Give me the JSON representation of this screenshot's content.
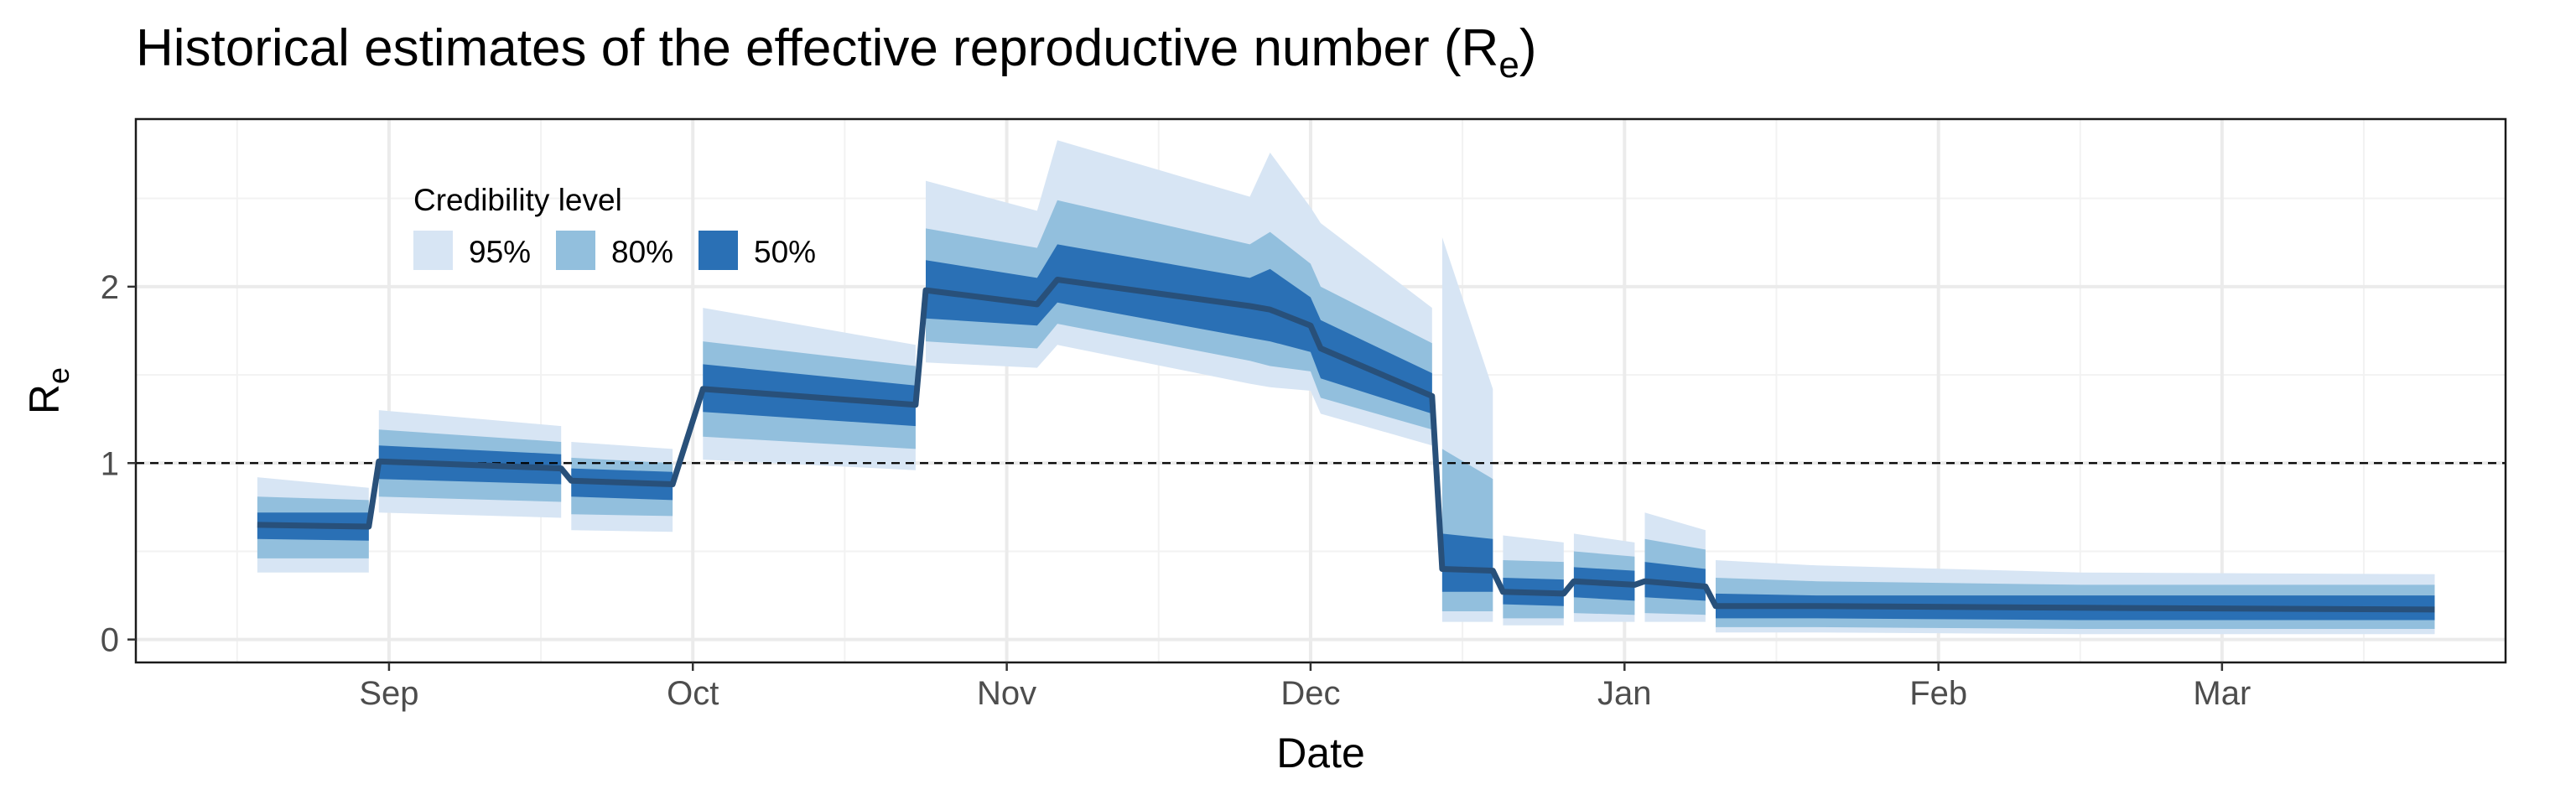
{
  "chart_data": {
    "type": "area",
    "title": "Historical estimates of the effective reproductive number (R",
    "title_sub": "e",
    "title_close": ")",
    "xlabel": "Date",
    "ylabel": "R",
    "ylabel_sub": "e",
    "xlim": [
      "2020-08-07",
      "2021-03-29"
    ],
    "ylim": [
      -0.13,
      2.95
    ],
    "x_ticks": [
      {
        "date": "2020-09-01",
        "label": "Sep"
      },
      {
        "date": "2020-10-01",
        "label": "Oct"
      },
      {
        "date": "2020-11-01",
        "label": "Nov"
      },
      {
        "date": "2020-12-01",
        "label": "Dec"
      },
      {
        "date": "2021-01-01",
        "label": "Jan"
      },
      {
        "date": "2021-02-01",
        "label": "Feb"
      },
      {
        "date": "2021-03-01",
        "label": "Mar"
      }
    ],
    "y_ticks": [
      0,
      1,
      2
    ],
    "reference_line": 1,
    "grid": true,
    "legend": {
      "title": "Credibility level",
      "placement": "top-left",
      "entries": [
        {
          "label": "95%",
          "color": "#d7e5f4"
        },
        {
          "label": "80%",
          "color": "#92bfdd"
        },
        {
          "label": "50%",
          "color": "#2a70b5"
        }
      ]
    },
    "median_color": "#28507a",
    "segments": [
      {
        "dates": [
          "2020-08-19",
          "2020-08-30"
        ],
        "median": [
          0.65,
          0.64
        ],
        "ci95": [
          [
            0.38,
            0.92
          ],
          [
            0.38,
            0.86
          ]
        ],
        "ci80": [
          [
            0.46,
            0.81
          ],
          [
            0.46,
            0.79
          ]
        ],
        "ci50": [
          [
            0.57,
            0.72
          ],
          [
            0.56,
            0.72
          ]
        ]
      },
      {
        "dates": [
          "2020-08-31",
          "2020-09-18"
        ],
        "median": [
          1.01,
          0.97
        ],
        "ci95": [
          [
            0.72,
            1.3
          ],
          [
            0.69,
            1.21
          ]
        ],
        "ci80": [
          [
            0.81,
            1.19
          ],
          [
            0.78,
            1.12
          ]
        ],
        "ci50": [
          [
            0.91,
            1.1
          ],
          [
            0.88,
            1.05
          ]
        ]
      },
      {
        "dates": [
          "2020-09-19",
          "2020-09-29"
        ],
        "median": [
          0.9,
          0.88
        ],
        "ci95": [
          [
            0.62,
            1.12
          ],
          [
            0.61,
            1.08
          ]
        ],
        "ci80": [
          [
            0.71,
            1.03
          ],
          [
            0.7,
            1.0
          ]
        ],
        "ci50": [
          [
            0.81,
            0.97
          ],
          [
            0.79,
            0.95
          ]
        ]
      },
      {
        "dates": [
          "2020-10-02",
          "2020-10-23"
        ],
        "median": [
          1.42,
          1.33
        ],
        "ci95": [
          [
            1.02,
            1.88
          ],
          [
            0.96,
            1.67
          ]
        ],
        "ci80": [
          [
            1.15,
            1.69
          ],
          [
            1.08,
            1.55
          ]
        ],
        "ci50": [
          [
            1.29,
            1.56
          ],
          [
            1.21,
            1.44
          ]
        ]
      },
      {
        "dates": [
          "2020-10-24",
          "2020-11-04",
          "2020-11-06",
          "2020-11-25",
          "2020-11-27",
          "2020-12-01",
          "2020-12-02",
          "2020-12-13"
        ],
        "median": [
          1.98,
          1.9,
          2.04,
          1.89,
          1.87,
          1.78,
          1.65,
          1.38
        ],
        "ci95": [
          [
            1.57,
            2.6
          ],
          [
            1.54,
            2.43
          ],
          [
            1.67,
            2.83
          ],
          [
            1.45,
            2.51
          ],
          [
            1.43,
            2.76
          ],
          [
            1.41,
            2.45
          ],
          [
            1.28,
            2.36
          ],
          [
            1.1,
            1.88
          ]
        ],
        "ci80": [
          [
            1.69,
            2.33
          ],
          [
            1.65,
            2.22
          ],
          [
            1.79,
            2.49
          ],
          [
            1.58,
            2.24
          ],
          [
            1.55,
            2.31
          ],
          [
            1.52,
            2.13
          ],
          [
            1.37,
            2.0
          ],
          [
            1.19,
            1.68
          ]
        ],
        "ci50": [
          [
            1.82,
            2.15
          ],
          [
            1.78,
            2.05
          ],
          [
            1.91,
            2.24
          ],
          [
            1.71,
            2.05
          ],
          [
            1.69,
            2.1
          ],
          [
            1.63,
            1.94
          ],
          [
            1.48,
            1.81
          ],
          [
            1.28,
            1.51
          ]
        ]
      },
      {
        "dates": [
          "2020-12-14",
          "2020-12-19"
        ],
        "median": [
          0.4,
          0.39
        ],
        "ci95": [
          [
            0.1,
            2.28
          ],
          [
            0.1,
            1.42
          ]
        ],
        "ci80": [
          [
            0.16,
            1.08
          ],
          [
            0.16,
            0.91
          ]
        ],
        "ci50": [
          [
            0.27,
            0.6
          ],
          [
            0.27,
            0.57
          ]
        ]
      },
      {
        "dates": [
          "2020-12-20",
          "2020-12-26"
        ],
        "median": [
          0.27,
          0.26
        ],
        "ci95": [
          [
            0.08,
            0.59
          ],
          [
            0.08,
            0.55
          ]
        ],
        "ci80": [
          [
            0.12,
            0.45
          ],
          [
            0.12,
            0.44
          ]
        ],
        "ci50": [
          [
            0.2,
            0.35
          ],
          [
            0.19,
            0.34
          ]
        ]
      },
      {
        "dates": [
          "2020-12-27",
          "2021-01-02"
        ],
        "median": [
          0.33,
          0.31
        ],
        "ci95": [
          [
            0.1,
            0.6
          ],
          [
            0.1,
            0.55
          ]
        ],
        "ci80": [
          [
            0.15,
            0.5
          ],
          [
            0.14,
            0.47
          ]
        ],
        "ci50": [
          [
            0.24,
            0.41
          ],
          [
            0.22,
            0.39
          ]
        ]
      },
      {
        "dates": [
          "2021-01-03",
          "2021-01-09"
        ],
        "median": [
          0.33,
          0.3
        ],
        "ci95": [
          [
            0.1,
            0.72
          ],
          [
            0.1,
            0.62
          ]
        ],
        "ci80": [
          [
            0.15,
            0.57
          ],
          [
            0.14,
            0.51
          ]
        ],
        "ci50": [
          [
            0.24,
            0.44
          ],
          [
            0.22,
            0.4
          ]
        ]
      },
      {
        "dates": [
          "2021-01-10",
          "2021-01-20",
          "2021-02-15",
          "2021-03-22"
        ],
        "median": [
          0.19,
          0.19,
          0.18,
          0.17
        ],
        "ci95": [
          [
            0.04,
            0.45
          ],
          [
            0.04,
            0.42
          ],
          [
            0.03,
            0.38
          ],
          [
            0.03,
            0.37
          ]
        ],
        "ci80": [
          [
            0.07,
            0.35
          ],
          [
            0.07,
            0.33
          ],
          [
            0.06,
            0.31
          ],
          [
            0.06,
            0.31
          ]
        ],
        "ci50": [
          [
            0.12,
            0.26
          ],
          [
            0.12,
            0.25
          ],
          [
            0.11,
            0.25
          ],
          [
            0.11,
            0.25
          ]
        ]
      }
    ]
  }
}
